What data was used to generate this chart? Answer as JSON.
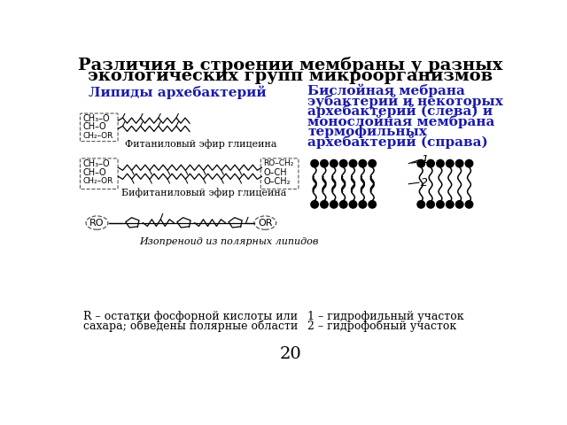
{
  "title_line1": "Различия в строении мембраны у разных",
  "title_line2": "экологических групп микроорганизмов",
  "left_heading": "Липиды архебактерий",
  "right_heading_line1": "Бислойная мебрана",
  "right_heading_line2": "эубактерий и некоторых",
  "right_heading_line3": "архебактерий (слева) и",
  "right_heading_line4": "монослойная мембрана",
  "right_heading_line5": "термофильных",
  "right_heading_line6": "архебактерий (справа)",
  "label1": "Фитаниловый эфир глицеина",
  "label2": "Бифитаниловый эфир глицеина",
  "label3": "Изопреноид из полярных липидов",
  "legend_left1": "R – остатки фосфорной кислоты или",
  "legend_left2": "сахара; обведены полярные области",
  "legend_right1": "1 – гидрофильный участок",
  "legend_right2": "2 – гидрофобный участок",
  "page_number": "20",
  "bg_color": "#ffffff",
  "text_color": "#000000",
  "heading_color": "#1a1aaa",
  "title_fontsize": 14,
  "heading_fontsize": 11,
  "label_fontsize": 8,
  "legend_fontsize": 9
}
